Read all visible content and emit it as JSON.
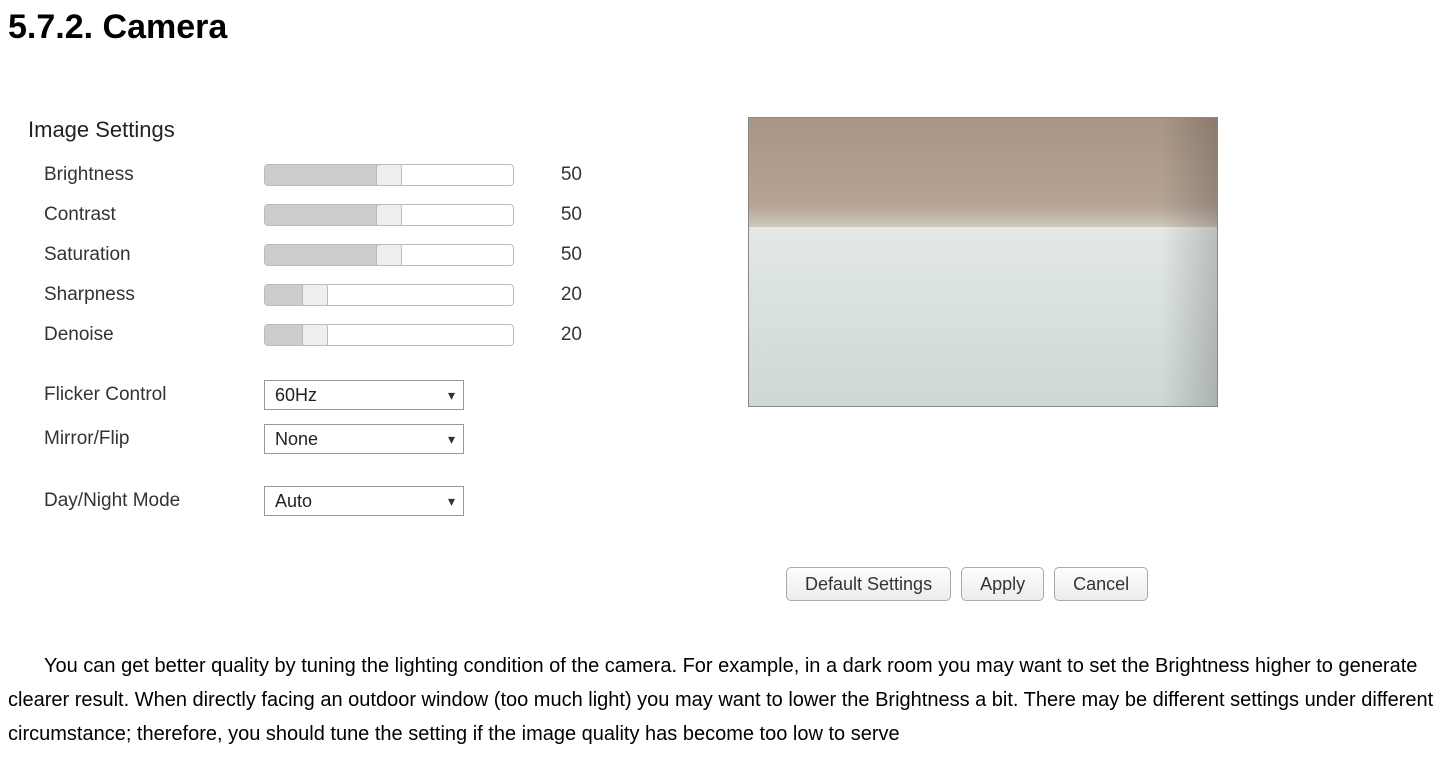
{
  "heading": "5.7.2.   Camera",
  "panel_title": "Image Settings",
  "sliders": [
    {
      "label": "Brightness",
      "value": 50,
      "max": 100
    },
    {
      "label": "Contrast",
      "value": 50,
      "max": 100
    },
    {
      "label": "Saturation",
      "value": 50,
      "max": 100
    },
    {
      "label": "Sharpness",
      "value": 20,
      "max": 100
    },
    {
      "label": "Denoise",
      "value": 20,
      "max": 100
    }
  ],
  "selects": {
    "flicker": {
      "label": "Flicker Control",
      "value": "60Hz"
    },
    "mirror": {
      "label": "Mirror/Flip",
      "value": "None"
    },
    "daynight": {
      "label": "Day/Night Mode",
      "value": "Auto"
    }
  },
  "buttons": {
    "defaults": "Default Settings",
    "apply": "Apply",
    "cancel": "Cancel"
  },
  "preview": {
    "top_color_a": "#a89585",
    "top_color_b": "#b5a394",
    "bottom_color_a": "#dfe6e3",
    "bottom_color_b": "#cfd8d4"
  },
  "paragraph": "You can get better quality by tuning the lighting condition of the camera. For example, in a dark room you may want to set the Brightness higher to generate clearer result. When directly facing an outdoor window (too much light) you may want to lower the Brightness a bit. There may be different settings under different circumstance; therefore, you should tune the setting if the image quality has become too low to serve"
}
